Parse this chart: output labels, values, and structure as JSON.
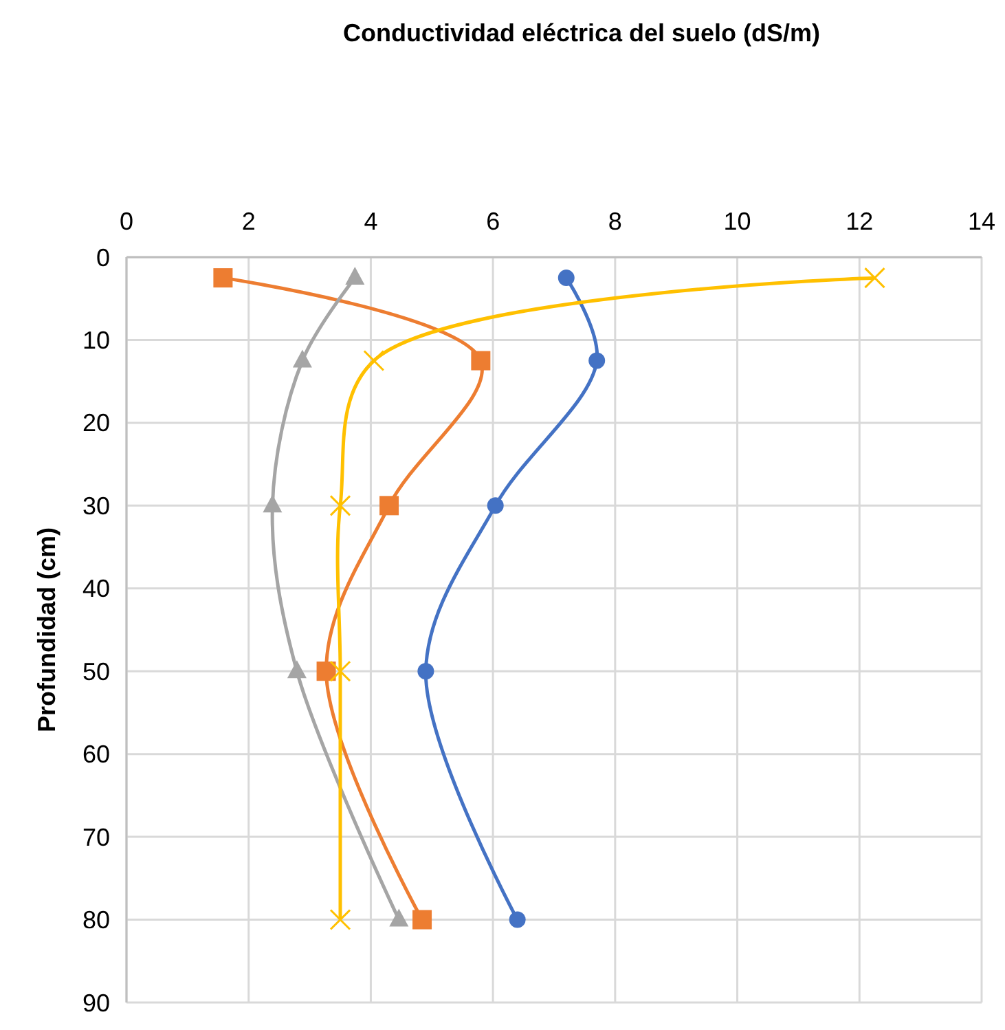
{
  "chart_data": {
    "type": "line",
    "title": "Conductividad eléctrica del suelo (dS/m)",
    "ylabel": "Profundidad (cm)",
    "xlim": [
      0,
      14
    ],
    "xticks": [
      0,
      2,
      4,
      6,
      8,
      10,
      12,
      14
    ],
    "ylim": [
      90,
      0
    ],
    "yticks": [
      0,
      10,
      20,
      30,
      40,
      50,
      60,
      70,
      80,
      90
    ],
    "grid": true,
    "line_style": "solid",
    "series": [
      {
        "color": "#4472c4",
        "marker": "circle",
        "x": [
          7.2,
          7.7,
          6.04,
          4.9,
          6.4
        ],
        "values": [
          2.5,
          12.5,
          30,
          50,
          80
        ]
      },
      {
        "color": "#ed7d31",
        "marker": "square",
        "x": [
          1.58,
          5.8,
          4.3,
          3.27,
          4.84
        ],
        "values": [
          2.5,
          12.5,
          30,
          50,
          80
        ]
      },
      {
        "color": "#a5a5a5",
        "marker": "triangle",
        "x": [
          3.74,
          2.88,
          2.39,
          2.79,
          4.46
        ],
        "values": [
          2.5,
          12.5,
          30,
          50,
          80
        ]
      },
      {
        "color": "#ffc000",
        "marker": "cross",
        "x": [
          12.25,
          4.05,
          3.5,
          3.5,
          3.5
        ],
        "values": [
          2.5,
          12.5,
          30,
          50,
          80
        ]
      }
    ]
  }
}
